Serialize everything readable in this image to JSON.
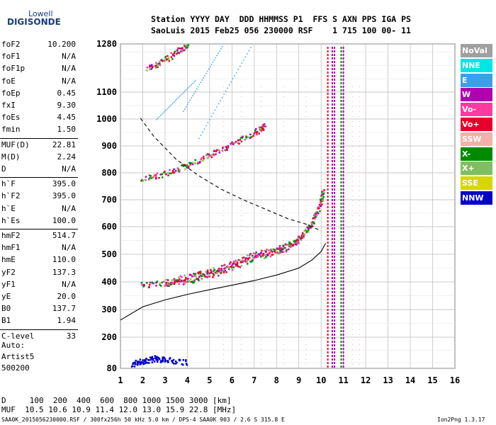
{
  "logo": {
    "line1": "Lowell",
    "line2": "DIGISONDE"
  },
  "header": {
    "line1": "Station YYYY DAY  DDD HHMMSS P1  FFS S AXN PPS IGA PS",
    "line2": "SaoLuis 2015 Feb25 056 230000 RSF    1 715 100 00- 11"
  },
  "params": [
    {
      "k": "foF2",
      "v": "10.200"
    },
    {
      "k": "foF1",
      "v": "N/A"
    },
    {
      "k": "foF1p",
      "v": "N/A"
    },
    {
      "k": "foE",
      "v": "N/A"
    },
    {
      "k": "foEp",
      "v": "0.45"
    },
    {
      "k": "fxI",
      "v": "9.30"
    },
    {
      "k": "foEs",
      "v": "4.45"
    },
    {
      "k": "fmin",
      "v": "1.50"
    },
    {
      "k": "MUF(D)",
      "v": "22.81"
    },
    {
      "k": "M(D)",
      "v": "2.24"
    },
    {
      "k": "D",
      "v": "N/A"
    },
    {
      "k": "h`F",
      "v": "395.0"
    },
    {
      "k": "h`F2",
      "v": "395.0"
    },
    {
      "k": "h`E",
      "v": "N/A"
    },
    {
      "k": "h`Es",
      "v": "100.0"
    },
    {
      "k": "hmF2",
      "v": "514.7"
    },
    {
      "k": "hmF1",
      "v": "N/A"
    },
    {
      "k": "hmE",
      "v": "110.0"
    },
    {
      "k": "yF2",
      "v": "137.3"
    },
    {
      "k": "yF1",
      "v": "N/A"
    },
    {
      "k": "yE",
      "v": "20.0"
    },
    {
      "k": "B0",
      "v": "137.7"
    },
    {
      "k": "B1",
      "v": "1.94"
    },
    {
      "k": "C-level",
      "v": "33"
    }
  ],
  "auto": {
    "l1": "Auto:",
    "l2": "Artist5",
    "l3": "500200"
  },
  "legend": [
    {
      "label": "NoVal",
      "color": "#a0a0a0"
    },
    {
      "label": "NNE",
      "color": "#00e5e5"
    },
    {
      "label": "E",
      "color": "#3aa0ea"
    },
    {
      "label": "W",
      "color": "#b000b0"
    },
    {
      "label": "Vo-",
      "color": "#ff3aa0"
    },
    {
      "label": "Vo+",
      "color": "#e8002a"
    },
    {
      "label": "SSW",
      "color": "#f4b0a8"
    },
    {
      "label": "X-",
      "color": "#008a00"
    },
    {
      "label": "X+",
      "color": "#7ec060"
    },
    {
      "label": "SSE",
      "color": "#d6d600"
    },
    {
      "label": "NNW",
      "color": "#0000c8"
    }
  ],
  "footer": {
    "d_line": "D     100  200  400  600  800 1000 1500 3000 [km]",
    "muf_line": "MUF  10.5 10.6 10.9 11.4 12.0 13.0 15.9 22.8 [MHz]",
    "bottom": "SAA0K_2015056230000.RSF / 300fx256h 50 kHz 5.0 km / DPS-4 SAA0K 903 / 2.6 S 315.8 E",
    "version": "Ion2Png 1.3.17"
  },
  "chart_data": {
    "type": "scatter",
    "x_ticks": [
      1,
      2,
      3,
      4,
      5,
      6,
      7,
      8,
      9,
      10,
      11,
      12,
      13,
      14,
      15,
      16
    ],
    "y_ticks": [
      80,
      200,
      300,
      400,
      500,
      600,
      700,
      800,
      900,
      1000,
      1100,
      1280
    ],
    "xlim": [
      1,
      16
    ],
    "ylim": [
      80,
      1280
    ],
    "grid": true,
    "profile_solid": [
      [
        1,
        262
      ],
      [
        2,
        310
      ],
      [
        3,
        335
      ],
      [
        4,
        355
      ],
      [
        5,
        372
      ],
      [
        6,
        388
      ],
      [
        7,
        405
      ],
      [
        8,
        425
      ],
      [
        9,
        450
      ],
      [
        9.6,
        480
      ],
      [
        10,
        510
      ],
      [
        10.2,
        540
      ]
    ],
    "profile_dashed": [
      [
        1.9,
        1003
      ],
      [
        2.5,
        935
      ],
      [
        3.5,
        850
      ],
      [
        4.5,
        790
      ],
      [
        5.5,
        740
      ],
      [
        6.5,
        700
      ],
      [
        7.5,
        665
      ],
      [
        8.5,
        630
      ],
      [
        9.3,
        610
      ],
      [
        10,
        585
      ]
    ],
    "traces": [
      {
        "name": "o-F2",
        "color": "#e8002a",
        "points": [
          [
            1.9,
            392
          ],
          [
            3,
            397
          ],
          [
            4,
            405
          ],
          [
            5,
            425
          ],
          [
            6,
            455
          ],
          [
            7,
            490
          ],
          [
            8,
            510
          ],
          [
            8.7,
            535
          ],
          [
            9.2,
            575
          ],
          [
            9.6,
            620
          ],
          [
            9.9,
            680
          ],
          [
            10.1,
            740
          ]
        ]
      },
      {
        "name": "x-F2",
        "color": "#008a00",
        "points": [
          [
            3,
            400
          ],
          [
            4,
            420
          ],
          [
            5,
            440
          ],
          [
            6,
            468
          ],
          [
            7,
            500
          ],
          [
            8,
            520
          ],
          [
            9,
            555
          ]
        ]
      },
      {
        "name": "2F2",
        "color": "#e8002a",
        "points": [
          [
            1.9,
            775
          ],
          [
            3,
            800
          ],
          [
            4,
            830
          ],
          [
            5,
            870
          ],
          [
            6,
            910
          ],
          [
            7,
            950
          ],
          [
            7.5,
            980
          ]
        ]
      },
      {
        "name": "3F2",
        "color": "#e8002a",
        "points": [
          [
            2.2,
            1190
          ],
          [
            2.8,
            1215
          ],
          [
            3.5,
            1250
          ],
          [
            4.0,
            1280
          ]
        ]
      },
      {
        "name": "Es",
        "color": "#0000c8",
        "points": [
          [
            1.5,
            100
          ],
          [
            2,
            110
          ],
          [
            2.5,
            120
          ],
          [
            3,
            115
          ],
          [
            4,
            105
          ]
        ]
      }
    ],
    "verticals": [
      {
        "x": 10.3,
        "color": "#e8002a"
      },
      {
        "x": 10.5,
        "color": "#b000b0"
      },
      {
        "x": 10.6,
        "color": "#b000b0"
      },
      {
        "x": 10.9,
        "color": "#008a00"
      },
      {
        "x": 11.0,
        "color": "#b000b0"
      }
    ]
  }
}
